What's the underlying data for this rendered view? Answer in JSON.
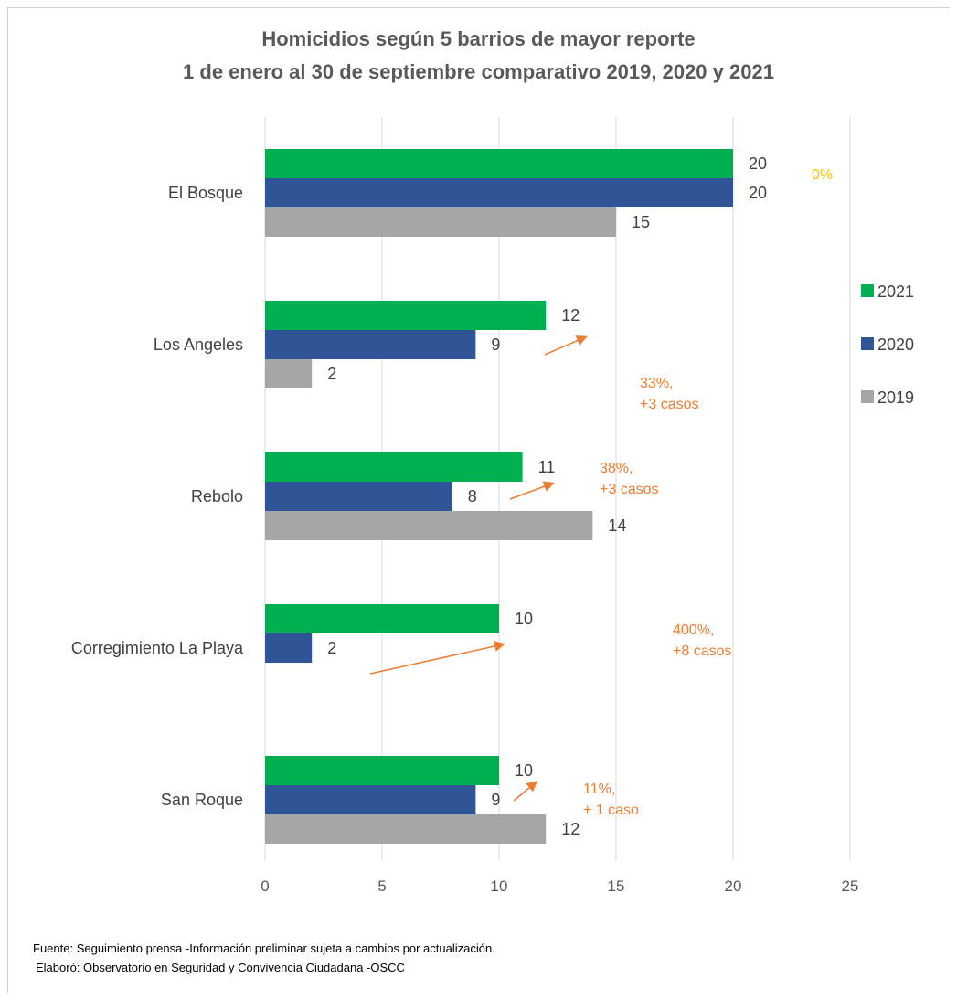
{
  "chart_data": {
    "type": "bar",
    "orientation": "horizontal",
    "title_line1": "Homicidios según 5 barrios de mayor reporte",
    "title_line2": "1 de enero al 30 de septiembre comparativo 2019, 2020 y 2021",
    "categories": [
      "El Bosque",
      "Los Angeles",
      "Rebolo",
      "Corregimiento La Playa",
      "San Roque"
    ],
    "series": [
      {
        "name": "2021",
        "color": "#00b050",
        "values": [
          20,
          12,
          11,
          10,
          10
        ]
      },
      {
        "name": "2020",
        "color": "#2f5597",
        "values": [
          20,
          9,
          8,
          2,
          9
        ]
      },
      {
        "name": "2019",
        "color": "#a6a6a6",
        "values": [
          15,
          2,
          14,
          null,
          12
        ]
      }
    ],
    "xlim": [
      0,
      25
    ],
    "xticks": [
      0,
      5,
      10,
      15,
      20,
      25
    ],
    "grid": true,
    "legend_position": "right",
    "annotations": [
      {
        "category": "El Bosque",
        "lines": [
          "0%"
        ],
        "color": "#ffc000"
      },
      {
        "category": "Los Angeles",
        "lines": [
          "33%,",
          "+3 casos"
        ],
        "color": "#ed7d31"
      },
      {
        "category": "Rebolo",
        "lines": [
          "38%,",
          "+3 casos"
        ],
        "color": "#ed7d31"
      },
      {
        "category": "Corregimiento La Playa",
        "lines": [
          "400%,",
          "+8 casos"
        ],
        "color": "#ed7d31"
      },
      {
        "category": "San Roque",
        "lines": [
          "11%,",
          "+ 1 caso"
        ],
        "color": "#ed7d31"
      }
    ]
  },
  "footer": {
    "source": "Fuente:  Seguimiento prensa -Información preliminar sujeta a cambios por actualización.",
    "credit": "Elaboró: Observatorio en Seguridad y Convivencia Ciudadana -OSCC"
  }
}
